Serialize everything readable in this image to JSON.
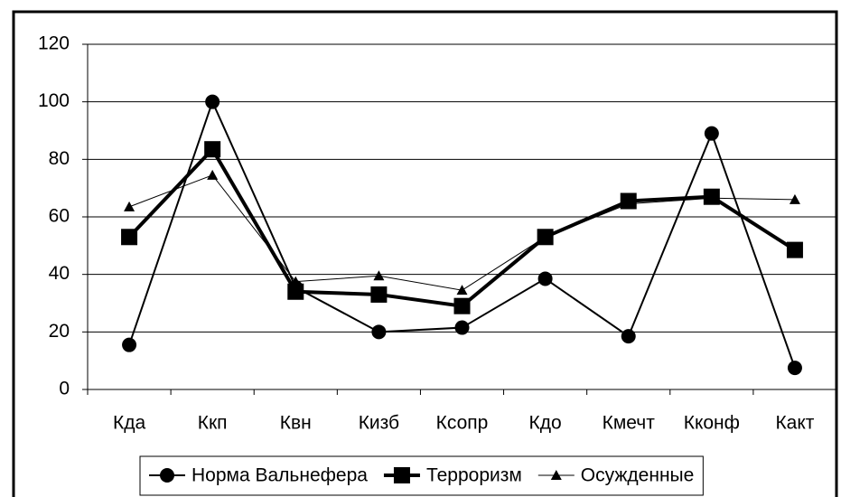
{
  "chart_data": {
    "type": "line",
    "categories": [
      "Кда",
      "Ккп",
      "Квн",
      "Кизб",
      "Ксопр",
      "Кдо",
      "Кмечт",
      "Кконф",
      "Какт"
    ],
    "series": [
      {
        "name": "Норма Вальнефера",
        "color": "#000000",
        "marker": "circle",
        "width": 2,
        "values": [
          15.5,
          100,
          35.5,
          20,
          21.5,
          38.5,
          18.5,
          89,
          7.5
        ]
      },
      {
        "name": "Терроризм",
        "color": "#000000",
        "marker": "square",
        "width": 4,
        "values": [
          53,
          83.5,
          34,
          33,
          29,
          53,
          65.5,
          67,
          48.5
        ]
      },
      {
        "name": "Осужденные",
        "color": "#000000",
        "marker": "triangle",
        "width": 1,
        "values": [
          63.5,
          74.5,
          37.5,
          39.5,
          34.5,
          53,
          64.5,
          66.5,
          66
        ]
      }
    ],
    "ylim": [
      0,
      120
    ],
    "yticks": [
      0,
      20,
      40,
      60,
      80,
      100,
      120
    ],
    "grid": true,
    "legend": "bottom"
  }
}
